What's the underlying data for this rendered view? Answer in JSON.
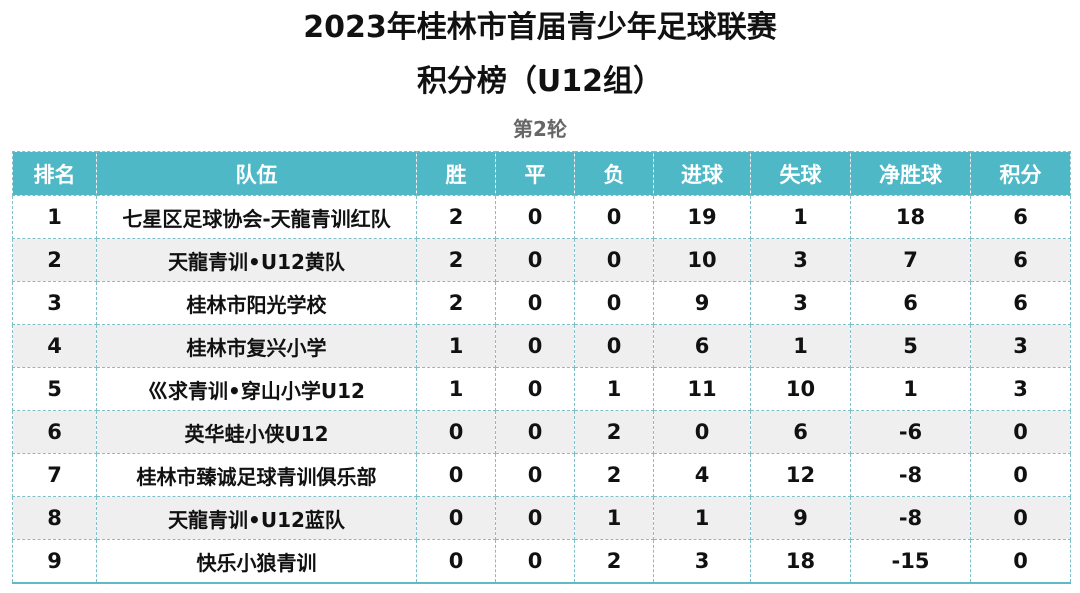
{
  "title": "2023年桂林市首届青少年足球联赛",
  "subtitle": "积分榜（U12组）",
  "round": "第2轮",
  "table": {
    "headers": [
      "排名",
      "队伍",
      "胜",
      "平",
      "负",
      "进球",
      "失球",
      "净胜球",
      "积分"
    ],
    "rows": [
      [
        "1",
        "七星区足球协会-天龍青训红队",
        "2",
        "0",
        "0",
        "19",
        "1",
        "18",
        "6"
      ],
      [
        "2",
        "天龍青训•U12黄队",
        "2",
        "0",
        "0",
        "10",
        "3",
        "7",
        "6"
      ],
      [
        "3",
        "桂林市阳光学校",
        "2",
        "0",
        "0",
        "9",
        "3",
        "6",
        "6"
      ],
      [
        "4",
        "桂林市复兴小学",
        "1",
        "0",
        "0",
        "6",
        "1",
        "5",
        "3"
      ],
      [
        "5",
        "巛求青训•穿山小学U12",
        "1",
        "0",
        "1",
        "11",
        "10",
        "1",
        "3"
      ],
      [
        "6",
        "英华蛙小侠U12",
        "0",
        "0",
        "2",
        "0",
        "6",
        "-6",
        "0"
      ],
      [
        "7",
        "桂林市臻诚足球青训俱乐部",
        "0",
        "0",
        "2",
        "4",
        "12",
        "-8",
        "0"
      ],
      [
        "8",
        "天龍青训•U12蓝队",
        "0",
        "0",
        "1",
        "1",
        "9",
        "-8",
        "0"
      ],
      [
        "9",
        "快乐小狼青训",
        "0",
        "0",
        "2",
        "3",
        "18",
        "-15",
        "0"
      ]
    ]
  }
}
